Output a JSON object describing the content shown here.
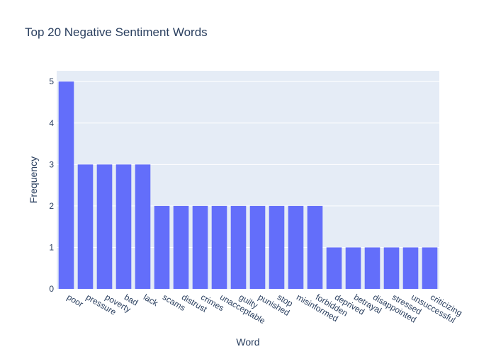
{
  "chart_data": {
    "type": "bar",
    "title": "Top 20 Negative Sentiment Words",
    "xlabel": "Word",
    "ylabel": "Frequency",
    "categories": [
      "poor",
      "pressure",
      "poverty",
      "bad",
      "lack",
      "scams",
      "distrust",
      "crimes",
      "unacceptable",
      "guilty",
      "punished",
      "stop",
      "misinformed",
      "forbidden",
      "deprived",
      "betrayal",
      "disappointed",
      "stressed",
      "unsuccessful",
      "criticizing"
    ],
    "values": [
      5,
      3,
      3,
      3,
      3,
      2,
      2,
      2,
      2,
      2,
      2,
      2,
      2,
      2,
      1,
      1,
      1,
      1,
      1,
      1
    ],
    "ylim": [
      0,
      5.26
    ],
    "yticks": [
      0,
      1,
      2,
      3,
      4,
      5
    ],
    "grid": true,
    "legend": "none",
    "colors": {
      "bar": "#636efa",
      "plot_background": "#e5ecf6",
      "gridline": "#ffffff",
      "text": "#2a3f5f"
    }
  }
}
